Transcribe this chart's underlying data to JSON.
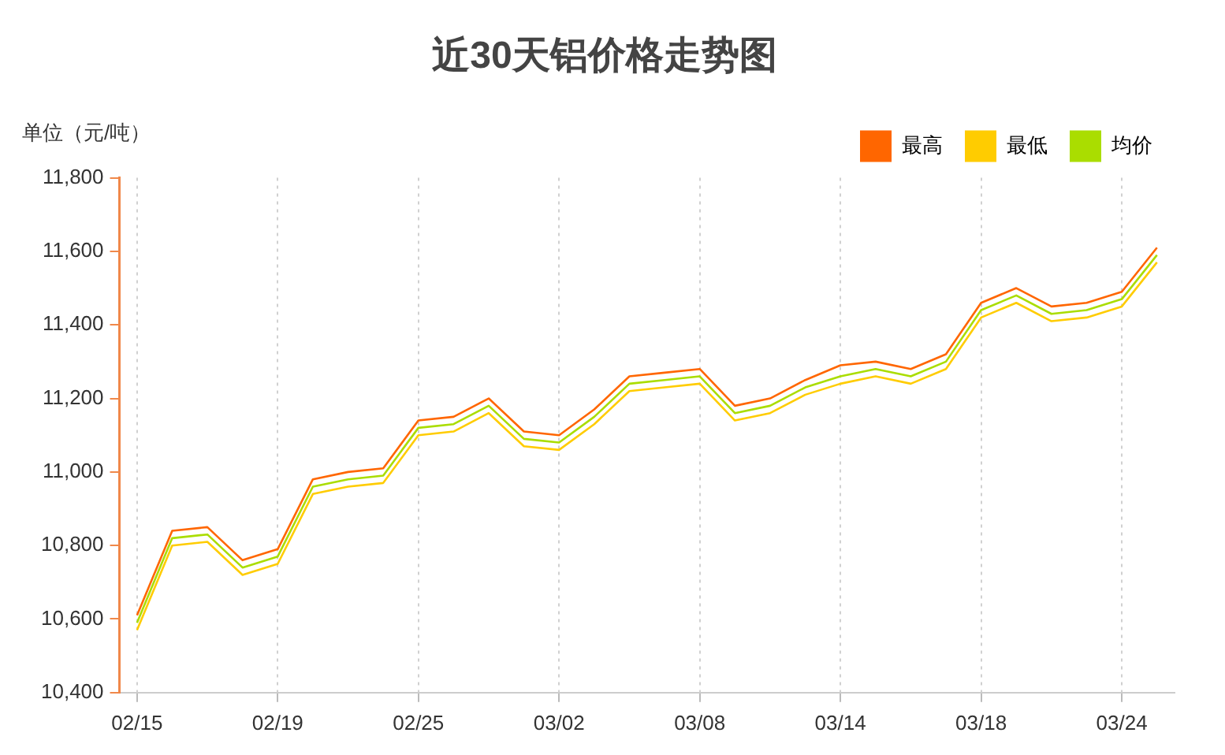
{
  "chart_data": {
    "type": "line",
    "title": "近30天铝价格走势图",
    "ylabel": "单位（元/吨）",
    "categories": [
      "02/15",
      null,
      null,
      null,
      "02/19",
      null,
      null,
      null,
      "02/25",
      null,
      null,
      null,
      "03/02",
      null,
      null,
      null,
      "03/08",
      null,
      null,
      null,
      "03/14",
      null,
      null,
      null,
      "03/18",
      null,
      null,
      null,
      "03/24",
      null
    ],
    "series": [
      {
        "name": "最高",
        "color": "#ff6600",
        "values": [
          10610,
          10840,
          10850,
          10760,
          10790,
          10980,
          11000,
          11010,
          11140,
          11150,
          11200,
          11110,
          11100,
          11170,
          11260,
          11270,
          11280,
          11180,
          11200,
          11250,
          11290,
          11300,
          11280,
          11320,
          11460,
          11500,
          11450,
          11460,
          11490,
          11610
        ]
      },
      {
        "name": "最低",
        "color": "#ffcc00",
        "values": [
          10570,
          10800,
          10810,
          10720,
          10750,
          10940,
          10960,
          10970,
          11100,
          11110,
          11160,
          11070,
          11060,
          11130,
          11220,
          11230,
          11240,
          11140,
          11160,
          11210,
          11240,
          11260,
          11240,
          11280,
          11420,
          11460,
          11410,
          11420,
          11450,
          11570
        ]
      },
      {
        "name": "均价",
        "color": "#aadd00",
        "values": [
          10590,
          10820,
          10830,
          10740,
          10770,
          10960,
          10980,
          10990,
          11120,
          11130,
          11180,
          11090,
          11080,
          11150,
          11240,
          11250,
          11260,
          11160,
          11180,
          11230,
          11260,
          11280,
          11260,
          11300,
          11440,
          11480,
          11430,
          11440,
          11470,
          11590
        ]
      }
    ],
    "ylim": [
      10400,
      11800
    ],
    "yticks": [
      {
        "value": 10400,
        "label": "10,400"
      },
      {
        "value": 10600,
        "label": "10,600"
      },
      {
        "value": 10800,
        "label": "10,800"
      },
      {
        "value": 11000,
        "label": "11,000"
      },
      {
        "value": 11200,
        "label": "11,200"
      },
      {
        "value": 11400,
        "label": "11,400"
      },
      {
        "value": 11600,
        "label": "11,600"
      },
      {
        "value": 11800,
        "label": "11,800"
      }
    ],
    "grid": "x",
    "legend": "top right",
    "marker": "none",
    "line_style": "solid"
  }
}
